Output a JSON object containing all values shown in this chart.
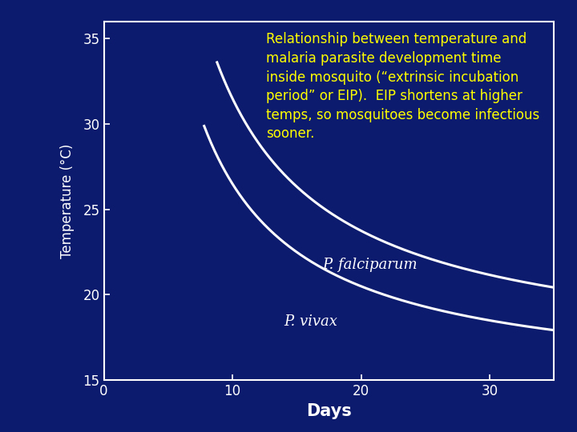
{
  "background_color": "#0d1b6e",
  "plot_bg_color": "#0d1b6e",
  "outer_bg_color": "#0d1b6e",
  "curve_color": "white",
  "curve_linewidth": 2.2,
  "xlim": [
    0,
    35
  ],
  "ylim": [
    15,
    36
  ],
  "xticks": [
    0,
    10,
    20,
    30
  ],
  "yticks": [
    15,
    20,
    25,
    30,
    35
  ],
  "xlabel": "Days",
  "ylabel": "Temperature (°C)",
  "xlabel_fontsize": 15,
  "ylabel_fontsize": 12,
  "tick_fontsize": 12,
  "tick_color": "white",
  "label_color": "white",
  "species1_label": "P. falciparum",
  "species2_label": "P. vivax",
  "species_label_color": "white",
  "species_label_fontsize": 13,
  "annotation_text": "Relationship between temperature and\nmalaria parasite development time\ninside mosquito (“extrinsic incubation\nperiod” or EIP).  EIP shortens at higher\ntemps, so mosquitoes become infectious\nsooner.",
  "annotation_color": "#ffff00",
  "annotation_fontsize": 12,
  "vivax_a": 120,
  "vivax_b": 14.5,
  "falciparum_a": 155,
  "falciparum_b": 16.0,
  "vivax_start": 7.8,
  "falciparum_start": 8.8
}
